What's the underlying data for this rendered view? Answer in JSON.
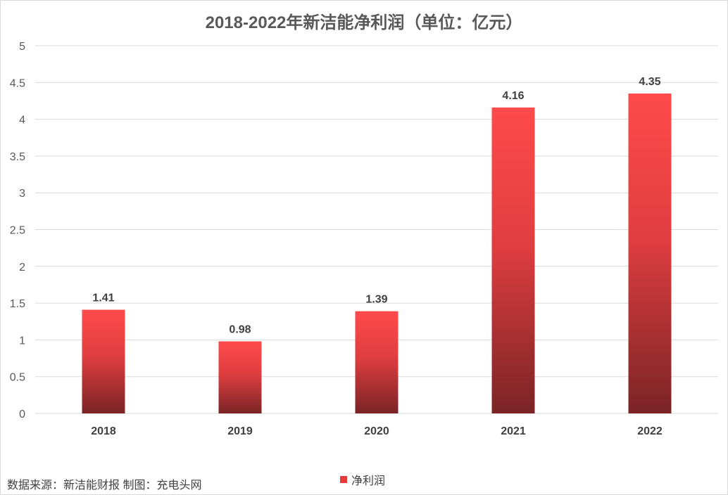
{
  "chart_data": {
    "type": "bar",
    "title": "2018-2022年新洁能净利润（单位：亿元）",
    "categories": [
      "2018",
      "2019",
      "2020",
      "2021",
      "2022"
    ],
    "series": [
      {
        "name": "净利润",
        "values": [
          1.41,
          0.98,
          1.39,
          4.16,
          4.35
        ]
      }
    ],
    "data_labels": [
      "1.41",
      "0.98",
      "1.39",
      "4.16",
      "4.35"
    ],
    "y_ticks": [
      "0",
      "0.5",
      "1",
      "1.5",
      "2",
      "2.5",
      "3",
      "3.5",
      "4",
      "4.5",
      "5"
    ],
    "ylim": [
      0,
      5
    ],
    "grid": true,
    "legend_position": "bottom",
    "colors": {
      "bar_top": "#ff4a4a",
      "bar_bottom": "#7a2426",
      "legend": "#e8393c",
      "grid": "#d9d9d9"
    }
  },
  "source_note": "数据来源：新洁能财报  制图：充电头网"
}
